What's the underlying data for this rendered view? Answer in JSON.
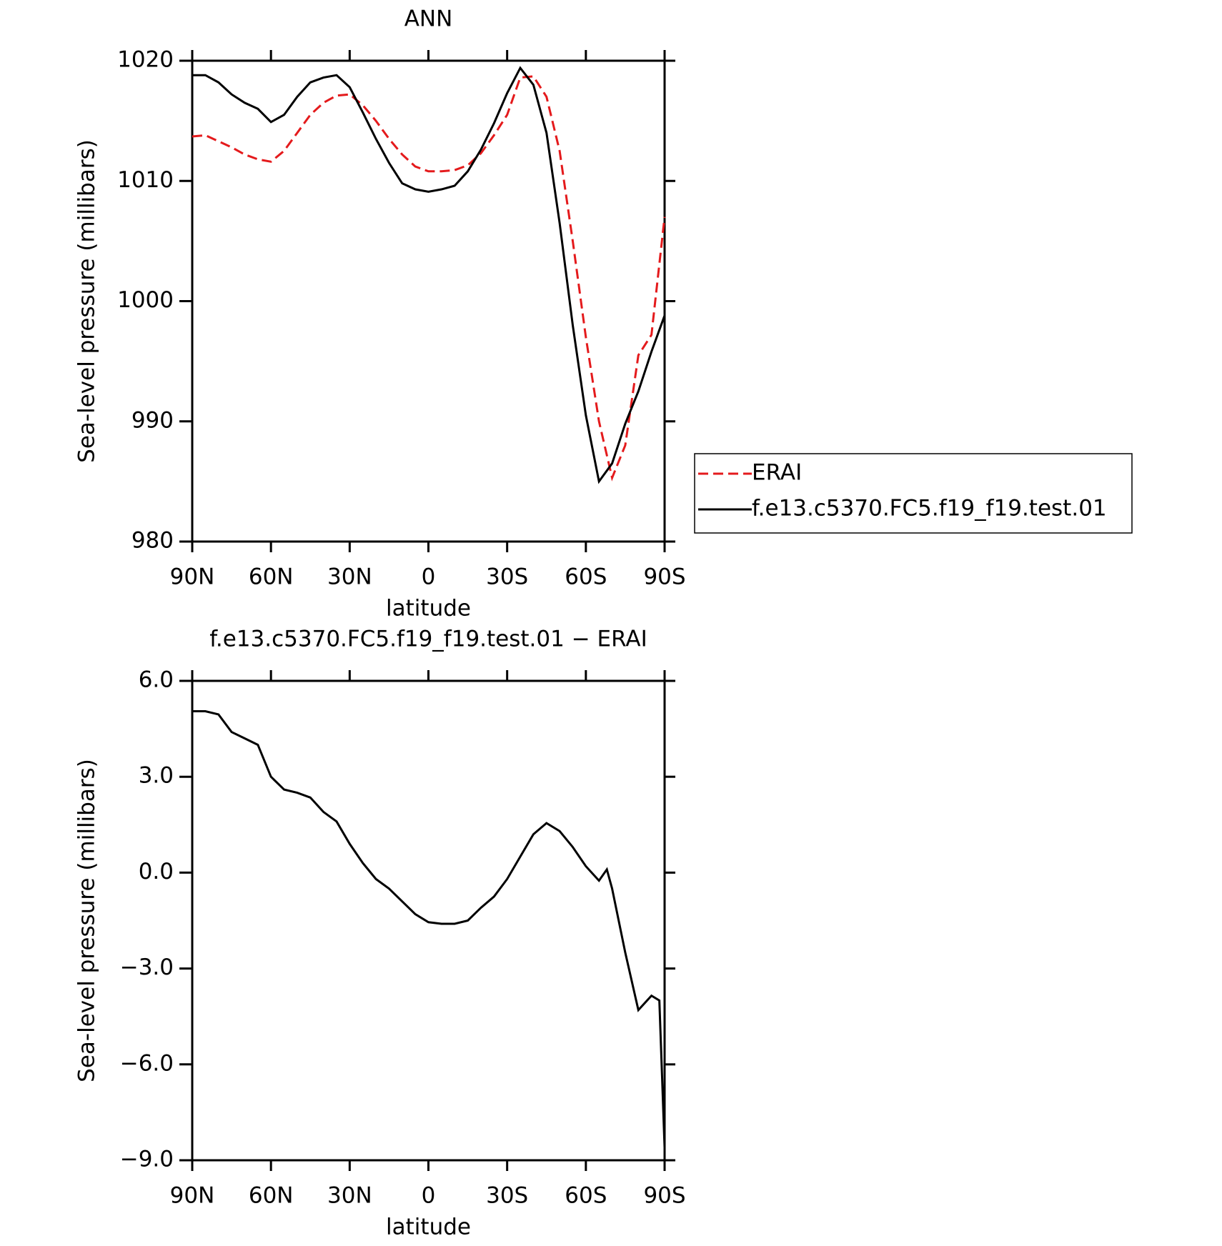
{
  "chart_data": [
    {
      "type": "line",
      "title": "ANN",
      "x_label": "latitude",
      "y_label": "Sea-level pressure (millibars)",
      "x": [
        90,
        85,
        80,
        75,
        70,
        65,
        60,
        55,
        50,
        45,
        40,
        35,
        30,
        25,
        20,
        15,
        10,
        5,
        0,
        -5,
        -10,
        -15,
        -20,
        -25,
        -30,
        -35,
        -40,
        -45,
        -50,
        -55,
        -60,
        -65,
        -70,
        -75,
        -80,
        -85,
        -90
      ],
      "series": [
        {
          "name": "ERAI",
          "color": "#e41a1c",
          "line_style": "dashed",
          "values": [
            1013.7,
            1013.8,
            1013.3,
            1012.8,
            1012.2,
            1011.8,
            1011.6,
            1012.5,
            1014.0,
            1015.5,
            1016.5,
            1017.1,
            1017.2,
            1016.3,
            1015.0,
            1013.5,
            1012.2,
            1011.2,
            1010.8,
            1010.8,
            1010.9,
            1011.3,
            1012.3,
            1013.8,
            1015.5,
            1018.6,
            1018.7,
            1017.0,
            1012.5,
            1005.0,
            997.0,
            990.0,
            985.3,
            988.0,
            995.5,
            997.2,
            1007.0
          ]
        },
        {
          "name": "f.e13.c5370.FC5.f19_f19.test.01",
          "color": "#000000",
          "line_style": "solid",
          "values": [
            1018.8,
            1018.8,
            1018.2,
            1017.2,
            1016.5,
            1016.0,
            1014.9,
            1015.5,
            1017.0,
            1018.2,
            1018.6,
            1018.8,
            1017.8,
            1015.7,
            1013.5,
            1011.5,
            1009.8,
            1009.3,
            1009.1,
            1009.3,
            1009.6,
            1010.8,
            1012.6,
            1014.8,
            1017.3,
            1019.4,
            1018.0,
            1014.0,
            1006.5,
            998.0,
            990.5,
            985.0,
            986.5,
            989.8,
            992.5,
            995.8,
            998.8
          ]
        }
      ],
      "xlim": [
        90,
        -90
      ],
      "xticks": [
        {
          "value": 90,
          "label": "90N"
        },
        {
          "value": 60,
          "label": "60N"
        },
        {
          "value": 30,
          "label": "30N"
        },
        0,
        {
          "value": -30,
          "label": "30S"
        },
        {
          "value": -60,
          "label": "60S"
        },
        {
          "value": -90,
          "label": "90S"
        }
      ],
      "ylim": [
        980,
        1020
      ],
      "yticks": [
        980,
        990,
        1000,
        1010,
        1020
      ],
      "legend": "right"
    },
    {
      "type": "line",
      "title": "f.e13.c5370.FC5.f19_f19.test.01 − ERAI",
      "x_label": "latitude",
      "y_label": "Sea-level pressure (millibars)",
      "x": [
        90,
        85,
        80,
        75,
        70,
        65,
        60,
        55,
        50,
        45,
        40,
        35,
        30,
        25,
        20,
        15,
        10,
        5,
        0,
        -5,
        -10,
        -15,
        -20,
        -25,
        -30,
        -35,
        -40,
        -45,
        -50,
        -55,
        -60,
        -65,
        -68,
        -70,
        -75,
        -80,
        -85,
        -88,
        -90
      ],
      "values": [
        5.05,
        5.05,
        4.95,
        4.4,
        4.2,
        4.0,
        3.0,
        2.6,
        2.5,
        2.35,
        1.9,
        1.6,
        0.9,
        0.3,
        -0.2,
        -0.5,
        -0.9,
        -1.3,
        -1.55,
        -1.6,
        -1.6,
        -1.5,
        -1.1,
        -0.75,
        -0.2,
        0.5,
        1.2,
        1.55,
        1.3,
        0.8,
        0.2,
        -0.25,
        0.1,
        -0.5,
        -2.5,
        -4.3,
        -3.85,
        -4.0,
        -8.6
      ],
      "color": "#000000",
      "xlim": [
        90,
        -90
      ],
      "xticks": [
        {
          "value": 90,
          "label": "90N"
        },
        {
          "value": 60,
          "label": "60N"
        },
        {
          "value": 30,
          "label": "30N"
        },
        0,
        {
          "value": -30,
          "label": "30S"
        },
        {
          "value": -60,
          "label": "60S"
        },
        {
          "value": -90,
          "label": "90S"
        }
      ],
      "ylim": [
        -9,
        6
      ],
      "yticks": [
        {
          "value": -9,
          "label": "−9.0"
        },
        {
          "value": -6,
          "label": "−6.0"
        },
        {
          "value": -3,
          "label": "−3.0"
        },
        {
          "value": 0,
          "label": "0.0"
        },
        {
          "value": 3,
          "label": "3.0"
        },
        {
          "value": 6,
          "label": "6.0"
        }
      ]
    }
  ]
}
